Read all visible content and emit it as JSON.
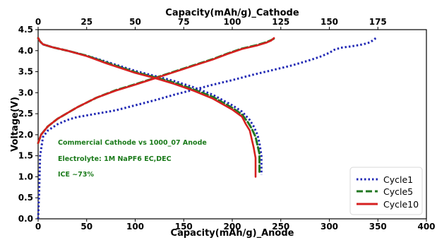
{
  "chart_data": {
    "type": "line",
    "top_xlabel": "Capacity(mAh/g)_Cathode",
    "xlabel": "Capacity(mAh/g)_Anode",
    "ylabel": "Voltage(V)",
    "xlim": [
      0,
      400
    ],
    "x2lim": [
      0,
      200
    ],
    "ylim": [
      0,
      4.5
    ],
    "xticks": [
      "0",
      "50",
      "100",
      "150",
      "200",
      "250",
      "300",
      "350",
      "400"
    ],
    "x2ticks": [
      "0",
      "25",
      "50",
      "75",
      "100",
      "125",
      "150",
      "175"
    ],
    "yticks": [
      "0.0",
      "0.5",
      "1.0",
      "1.5",
      "2.0",
      "2.5",
      "3.0",
      "3.5",
      "4.0",
      "4.5"
    ],
    "grid": false,
    "legend_position": "lower right",
    "annotations": [
      "Commercial Cathode vs 1000_07 Anode",
      "Electrolyte: 1M NaPF6 EC,DEC",
      "ICE ~73%"
    ],
    "series": [
      {
        "name": "Cycle1",
        "color": "#1f27b4",
        "style": "dotted",
        "charge": [
          [
            0,
            0.0
          ],
          [
            1,
            0.6
          ],
          [
            2,
            1.5
          ],
          [
            5,
            1.95
          ],
          [
            10,
            2.1
          ],
          [
            20,
            2.25
          ],
          [
            30,
            2.35
          ],
          [
            40,
            2.42
          ],
          [
            60,
            2.5
          ],
          [
            80,
            2.58
          ],
          [
            100,
            2.7
          ],
          [
            120,
            2.82
          ],
          [
            140,
            2.95
          ],
          [
            160,
            3.07
          ],
          [
            180,
            3.19
          ],
          [
            200,
            3.3
          ],
          [
            220,
            3.42
          ],
          [
            240,
            3.53
          ],
          [
            260,
            3.64
          ],
          [
            275,
            3.74
          ],
          [
            290,
            3.85
          ],
          [
            300,
            3.95
          ],
          [
            305,
            4.02
          ],
          [
            312,
            4.07
          ],
          [
            322,
            4.1
          ],
          [
            335,
            4.15
          ],
          [
            342,
            4.2
          ],
          [
            348,
            4.3
          ]
        ],
        "discharge": [
          [
            0,
            4.3
          ],
          [
            2,
            4.22
          ],
          [
            5,
            4.15
          ],
          [
            15,
            4.08
          ],
          [
            30,
            4.0
          ],
          [
            50,
            3.88
          ],
          [
            70,
            3.74
          ],
          [
            100,
            3.52
          ],
          [
            120,
            3.4
          ],
          [
            140,
            3.28
          ],
          [
            160,
            3.13
          ],
          [
            180,
            2.95
          ],
          [
            200,
            2.7
          ],
          [
            210,
            2.55
          ],
          [
            218,
            2.35
          ],
          [
            222,
            2.2
          ],
          [
            226,
            2.0
          ],
          [
            228,
            1.8
          ],
          [
            230,
            1.5
          ],
          [
            230,
            1.05
          ]
        ]
      },
      {
        "name": "Cycle5",
        "color": "#227722",
        "style": "dashed",
        "charge": [
          [
            0,
            1.8
          ],
          [
            3,
            2.0
          ],
          [
            10,
            2.2
          ],
          [
            20,
            2.38
          ],
          [
            40,
            2.65
          ],
          [
            60,
            2.88
          ],
          [
            80,
            3.06
          ],
          [
            100,
            3.2
          ],
          [
            120,
            3.35
          ],
          [
            140,
            3.5
          ],
          [
            160,
            3.65
          ],
          [
            180,
            3.8
          ],
          [
            195,
            3.93
          ],
          [
            210,
            4.05
          ],
          [
            225,
            4.13
          ],
          [
            235,
            4.2
          ],
          [
            240,
            4.25
          ],
          [
            244,
            4.3
          ]
        ],
        "discharge": [
          [
            0,
            4.3
          ],
          [
            2,
            4.22
          ],
          [
            5,
            4.15
          ],
          [
            15,
            4.08
          ],
          [
            30,
            4.0
          ],
          [
            50,
            3.88
          ],
          [
            70,
            3.72
          ],
          [
            100,
            3.49
          ],
          [
            120,
            3.37
          ],
          [
            140,
            3.24
          ],
          [
            160,
            3.08
          ],
          [
            180,
            2.9
          ],
          [
            200,
            2.64
          ],
          [
            210,
            2.48
          ],
          [
            216,
            2.3
          ],
          [
            220,
            2.15
          ],
          [
            224,
            1.95
          ],
          [
            226,
            1.75
          ],
          [
            228,
            1.55
          ],
          [
            228,
            1.1
          ]
        ]
      },
      {
        "name": "Cycle10",
        "color": "#d62020",
        "style": "solid",
        "charge": [
          [
            0,
            1.8
          ],
          [
            3,
            2.0
          ],
          [
            10,
            2.2
          ],
          [
            20,
            2.38
          ],
          [
            40,
            2.65
          ],
          [
            60,
            2.88
          ],
          [
            80,
            3.05
          ],
          [
            100,
            3.19
          ],
          [
            120,
            3.34
          ],
          [
            140,
            3.49
          ],
          [
            160,
            3.64
          ],
          [
            180,
            3.79
          ],
          [
            195,
            3.92
          ],
          [
            210,
            4.04
          ],
          [
            225,
            4.12
          ],
          [
            235,
            4.19
          ],
          [
            240,
            4.24
          ],
          [
            243,
            4.3
          ]
        ],
        "discharge": [
          [
            0,
            4.3
          ],
          [
            2,
            4.22
          ],
          [
            5,
            4.15
          ],
          [
            15,
            4.08
          ],
          [
            30,
            4.0
          ],
          [
            50,
            3.87
          ],
          [
            70,
            3.7
          ],
          [
            100,
            3.47
          ],
          [
            120,
            3.35
          ],
          [
            140,
            3.21
          ],
          [
            160,
            3.05
          ],
          [
            180,
            2.86
          ],
          [
            200,
            2.6
          ],
          [
            210,
            2.43
          ],
          [
            214,
            2.25
          ],
          [
            218,
            2.1
          ],
          [
            220,
            1.9
          ],
          [
            222,
            1.7
          ],
          [
            224,
            1.45
          ],
          [
            224,
            1.0
          ]
        ]
      }
    ]
  }
}
